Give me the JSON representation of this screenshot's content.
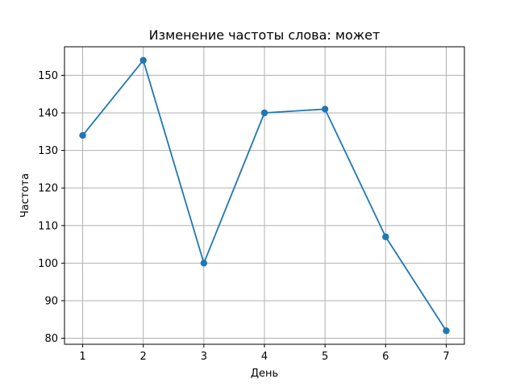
{
  "chart_data": {
    "type": "line",
    "title": "Изменение частоты слова: может",
    "xlabel": "День",
    "ylabel": "Частота",
    "x": [
      1,
      2,
      3,
      4,
      5,
      6,
      7
    ],
    "series": [
      {
        "values": [
          134,
          154,
          100,
          140,
          141,
          107,
          82
        ],
        "color": "#1f77b4",
        "marker": "circle"
      }
    ],
    "xlim": [
      0.7,
      7.3
    ],
    "ylim": [
      78.4,
      157.6
    ],
    "xticks": [
      "1",
      "2",
      "3",
      "4",
      "5",
      "6",
      "7"
    ],
    "yticks": [
      "80",
      "90",
      "100",
      "110",
      "120",
      "130",
      "140",
      "150"
    ],
    "grid": true
  }
}
